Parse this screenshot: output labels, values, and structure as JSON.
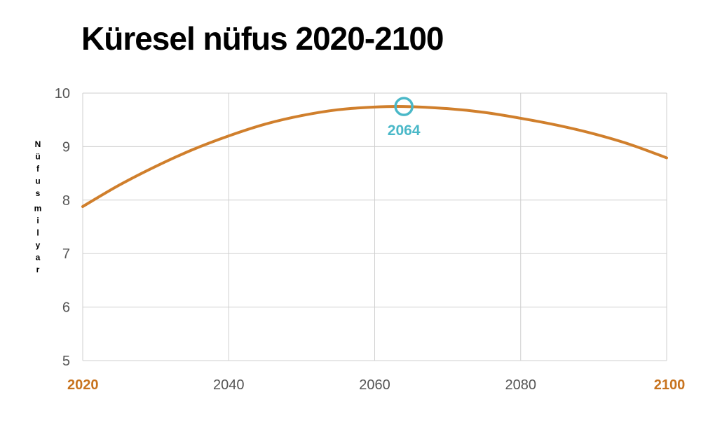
{
  "chart_data": {
    "type": "line",
    "title": "Küresel nüfus 2020-2100",
    "ylabel": "Nüfus milyar",
    "xlabel": "",
    "xlim": [
      2020,
      2100
    ],
    "ylim": [
      5,
      10
    ],
    "x_ticks": [
      {
        "value": 2020,
        "label": "2020",
        "emphasized": true
      },
      {
        "value": 2040,
        "label": "2040",
        "emphasized": false
      },
      {
        "value": 2060,
        "label": "2060",
        "emphasized": false
      },
      {
        "value": 2080,
        "label": "2080",
        "emphasized": false
      },
      {
        "value": 2100,
        "label": "2100",
        "emphasized": true
      }
    ],
    "y_ticks": [
      5,
      6,
      7,
      8,
      9,
      10
    ],
    "grid": true,
    "series": [
      {
        "color": "#d07f2c",
        "x": [
          2020,
          2025,
          2030,
          2035,
          2040,
          2045,
          2050,
          2055,
          2060,
          2064,
          2070,
          2075,
          2080,
          2085,
          2090,
          2095,
          2100
        ],
        "y": [
          7.88,
          8.28,
          8.63,
          8.94,
          9.2,
          9.42,
          9.58,
          9.69,
          9.74,
          9.75,
          9.71,
          9.64,
          9.53,
          9.4,
          9.24,
          9.04,
          8.79
        ]
      }
    ],
    "annotations": [
      {
        "x": 2064,
        "y": 9.75,
        "label": "2064",
        "marker": "circle",
        "color": "#4ab8c8"
      }
    ],
    "colors": {
      "emphasis_tick": "#c8731e",
      "tick": "#555555",
      "grid": "#cfcfcf"
    }
  }
}
